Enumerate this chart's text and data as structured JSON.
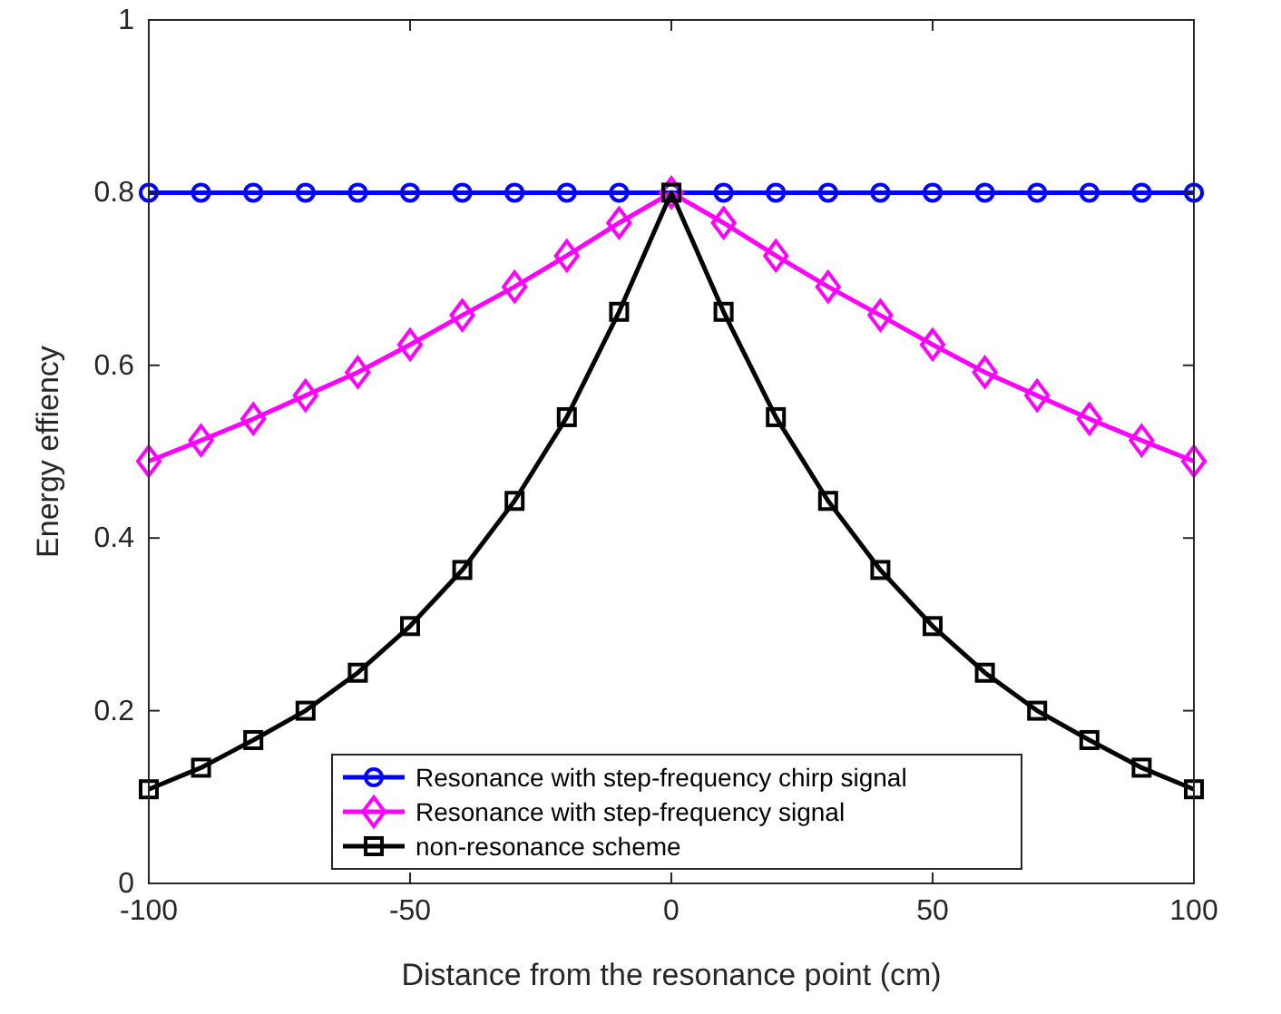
{
  "chart_data": {
    "type": "line",
    "xlabel": "Distance from the resonance point (cm)",
    "ylabel": "Energy effiency",
    "x": [
      -100,
      -90,
      -80,
      -70,
      -60,
      -50,
      -40,
      -30,
      -20,
      -10,
      0,
      10,
      20,
      30,
      40,
      50,
      60,
      70,
      80,
      90,
      100
    ],
    "xlim": [
      -100,
      100
    ],
    "xticks": [
      -100,
      -50,
      0,
      50,
      100
    ],
    "ylim": [
      0,
      1
    ],
    "yticks": [
      0,
      0.2,
      0.4,
      0.6,
      0.8,
      1
    ],
    "grid": false,
    "legend": "bottom",
    "series": [
      {
        "name": "Resonance with step-frequency chirp signal",
        "color": "#0000ff",
        "marker": "circle",
        "values": [
          0.8,
          0.8,
          0.8,
          0.8,
          0.8,
          0.8,
          0.8,
          0.8,
          0.8,
          0.8,
          0.8,
          0.8,
          0.8,
          0.8,
          0.8,
          0.8,
          0.8,
          0.8,
          0.8,
          0.8,
          0.8
        ]
      },
      {
        "name": "Resonance with step-frequency signal",
        "color": "#ff00ff",
        "marker": "diamond",
        "values": [
          0.489,
          0.513,
          0.538,
          0.565,
          0.592,
          0.624,
          0.658,
          0.691,
          0.727,
          0.765,
          0.8,
          0.765,
          0.727,
          0.691,
          0.658,
          0.624,
          0.592,
          0.565,
          0.538,
          0.513,
          0.489
        ]
      },
      {
        "name": "non-resonance scheme",
        "color": "#000000",
        "marker": "square",
        "values": [
          0.109,
          0.134,
          0.166,
          0.2,
          0.244,
          0.298,
          0.363,
          0.443,
          0.54,
          0.662,
          0.8,
          0.662,
          0.54,
          0.443,
          0.363,
          0.298,
          0.244,
          0.2,
          0.166,
          0.134,
          0.109
        ]
      }
    ]
  }
}
